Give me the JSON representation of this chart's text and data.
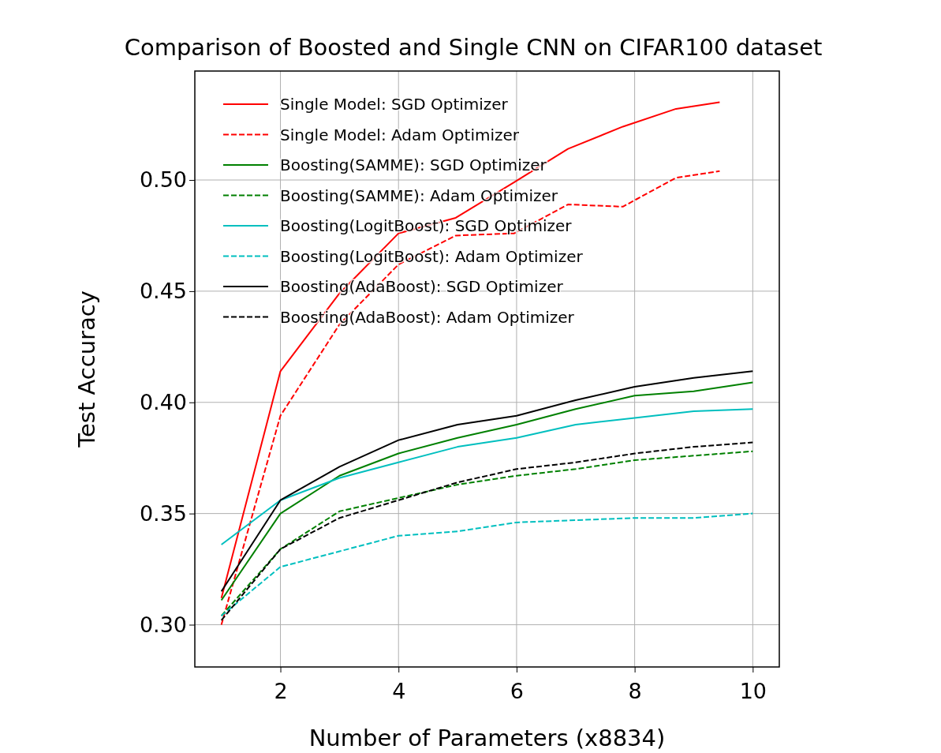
{
  "chart_data": {
    "type": "line",
    "title": "Comparison of Boosted and Single CNN on CIFAR100 dataset",
    "xlabel": "Number of Parameters (x8834)",
    "ylabel": "Test Accuracy",
    "xlim": [
      0.55,
      10.45
    ],
    "ylim": [
      0.281,
      0.549
    ],
    "xticks": [
      2,
      4,
      6,
      8,
      10
    ],
    "yticks": [
      {
        "value": 0.3,
        "label": "0.30"
      },
      {
        "value": 0.35,
        "label": "0.35"
      },
      {
        "value": 0.4,
        "label": "0.40"
      },
      {
        "value": 0.45,
        "label": "0.45"
      },
      {
        "value": 0.5,
        "label": "0.50"
      }
    ],
    "grid": true,
    "legend": "top left",
    "series": [
      {
        "name": "Single Model: SGD Optimizer",
        "color": "#ff0000",
        "line_style": "solid",
        "x": [
          1,
          2,
          3,
          4,
          4.97,
          5.96,
          6.87,
          7.8,
          8.7,
          9.44
        ],
        "values": [
          0.312,
          0.414,
          0.449,
          0.476,
          0.483,
          0.499,
          0.514,
          0.524,
          0.532,
          0.535
        ]
      },
      {
        "name": "Single Model: Adam Optimizer",
        "color": "#ff0000",
        "line_style": "dashed",
        "x": [
          1,
          2,
          3,
          4,
          4.97,
          5.96,
          6.87,
          7.8,
          8.7,
          9.44
        ],
        "values": [
          0.3,
          0.394,
          0.435,
          0.462,
          0.475,
          0.476,
          0.489,
          0.488,
          0.501,
          0.504
        ]
      },
      {
        "name": "Boosting(SAMME): SGD Optimizer",
        "color": "#008000",
        "line_style": "solid",
        "x": [
          1,
          2,
          3,
          4,
          5,
          6,
          7,
          8,
          9,
          10
        ],
        "values": [
          0.311,
          0.35,
          0.367,
          0.377,
          0.384,
          0.39,
          0.397,
          0.403,
          0.405,
          0.409
        ]
      },
      {
        "name": "Boosting(SAMME): Adam Optimizer",
        "color": "#008000",
        "line_style": "dashed",
        "x": [
          1,
          2,
          3,
          4,
          5,
          6,
          7,
          8,
          9,
          10
        ],
        "values": [
          0.304,
          0.334,
          0.351,
          0.357,
          0.363,
          0.367,
          0.37,
          0.374,
          0.376,
          0.378
        ]
      },
      {
        "name": "Boosting(LogitBoost): SGD Optimizer",
        "color": "#00bfbf",
        "line_style": "solid",
        "x": [
          1,
          2,
          3,
          4,
          5,
          6,
          7,
          8,
          9,
          10
        ],
        "values": [
          0.336,
          0.356,
          0.366,
          0.373,
          0.38,
          0.384,
          0.39,
          0.393,
          0.396,
          0.397
        ]
      },
      {
        "name": "Boosting(LogitBoost): Adam Optimizer",
        "color": "#00bfbf",
        "line_style": "dashed",
        "x": [
          1,
          2,
          3,
          4,
          5,
          6,
          7,
          8,
          9,
          10
        ],
        "values": [
          0.304,
          0.326,
          0.333,
          0.34,
          0.342,
          0.346,
          0.347,
          0.348,
          0.348,
          0.35
        ]
      },
      {
        "name": "Boosting(AdaBoost): SGD Optimizer",
        "color": "#000000",
        "line_style": "solid",
        "x": [
          1,
          2,
          3,
          4,
          5,
          6,
          7,
          8,
          9,
          10
        ],
        "values": [
          0.315,
          0.356,
          0.371,
          0.383,
          0.39,
          0.394,
          0.401,
          0.407,
          0.411,
          0.414
        ]
      },
      {
        "name": "Boosting(AdaBoost): Adam Optimizer",
        "color": "#000000",
        "line_style": "dashed",
        "x": [
          1,
          2,
          3,
          4,
          5,
          6,
          7,
          8,
          9,
          10
        ],
        "values": [
          0.302,
          0.334,
          0.348,
          0.356,
          0.364,
          0.37,
          0.373,
          0.377,
          0.38,
          0.382
        ]
      }
    ]
  }
}
